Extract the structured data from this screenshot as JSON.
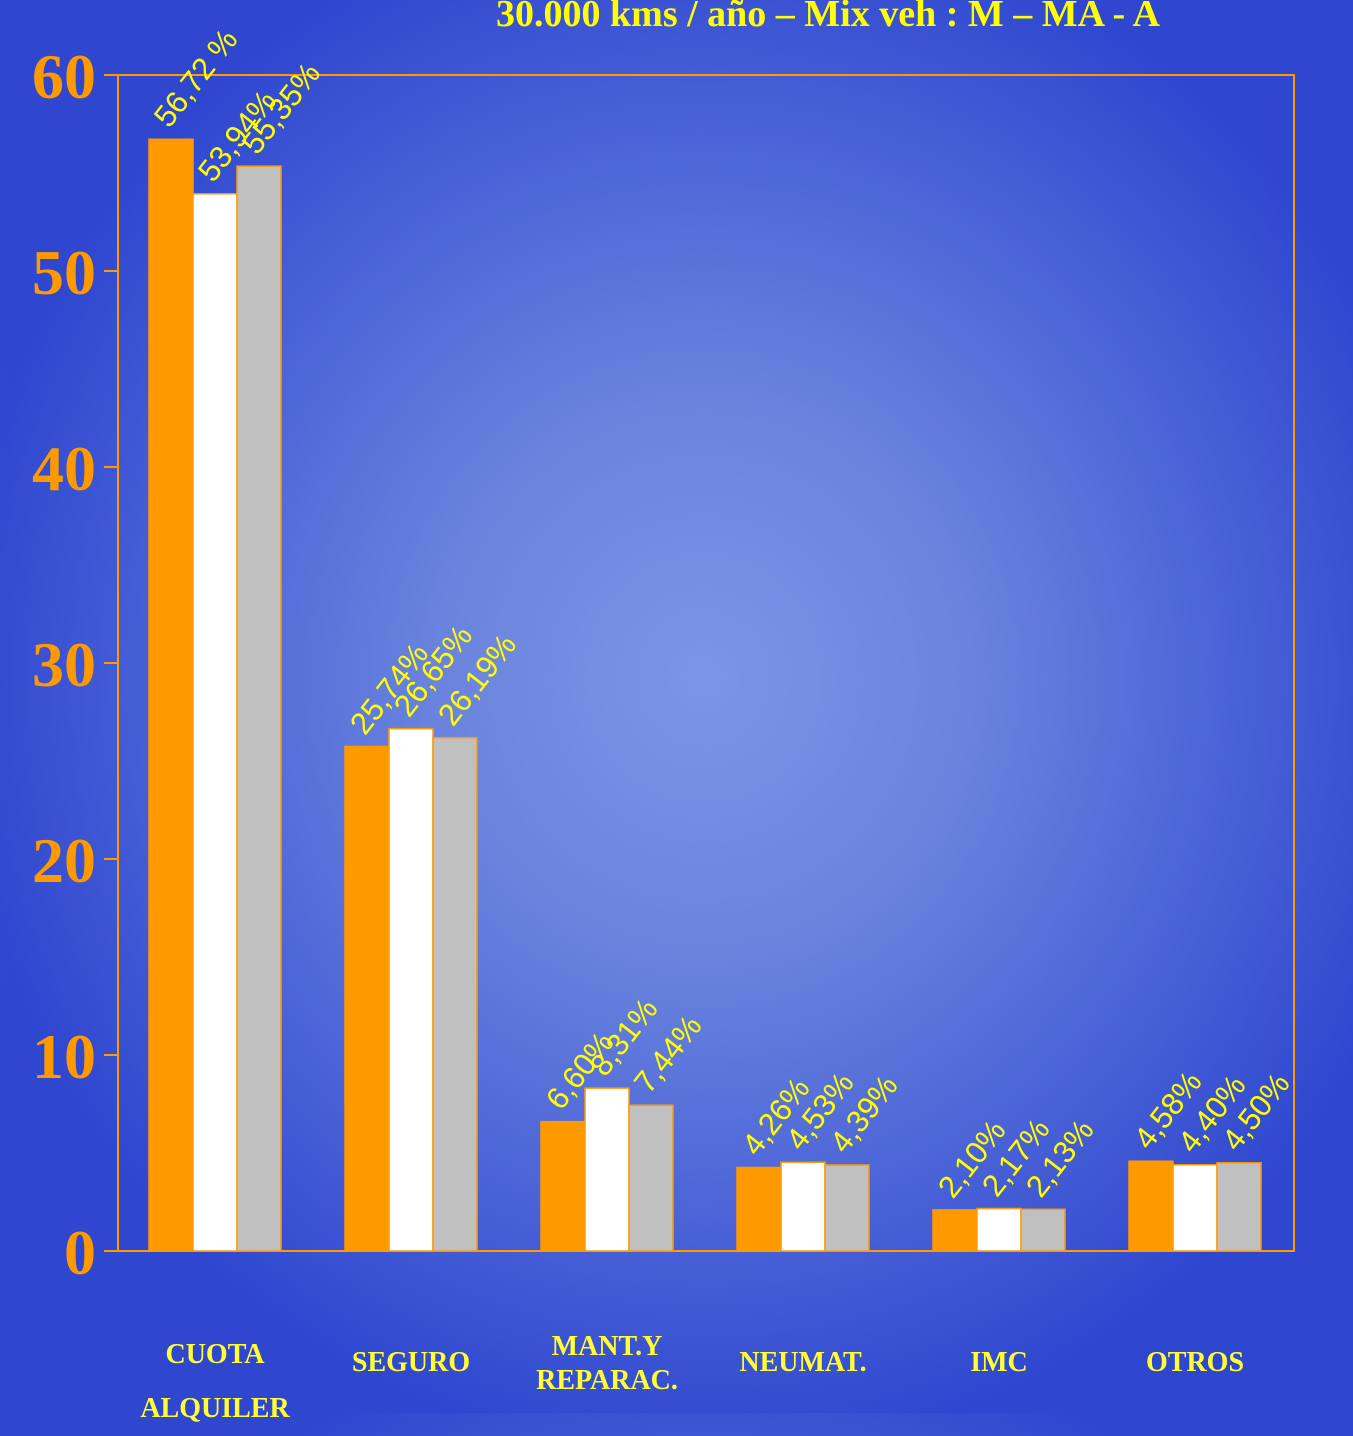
{
  "chart_data": {
    "type": "bar",
    "title": "30.000 kms / año – Mix veh : M – MA - A",
    "categories": [
      {
        "lines": [
          "CUOTA",
          "ALQUILER"
        ]
      },
      {
        "lines": [
          "SEGURO"
        ]
      },
      {
        "lines": [
          "MANT.Y",
          "REPARAC."
        ]
      },
      {
        "lines": [
          "NEUMAT."
        ]
      },
      {
        "lines": [
          "IMC"
        ]
      },
      {
        "lines": [
          "OTROS"
        ]
      }
    ],
    "series": [
      {
        "color": "#ff9900",
        "values": [
          56.72,
          25.74,
          6.6,
          4.26,
          2.1,
          4.58
        ],
        "labels": [
          "56,72 %",
          "25,74%",
          "6,60%",
          "4,26%",
          "2,10%",
          "4,58%"
        ]
      },
      {
        "color": "#ffffff",
        "values": [
          53.94,
          26.65,
          8.31,
          4.53,
          2.17,
          4.4
        ],
        "labels": [
          "53,94%",
          "26,65%",
          "8,31%",
          "4,53%",
          "2,17%",
          "4,40%"
        ]
      },
      {
        "color": "#c0c0c0",
        "values": [
          55.35,
          26.19,
          7.44,
          4.39,
          2.13,
          4.5
        ],
        "labels": [
          "55,35%",
          "26,19%",
          "7,44%",
          "4,39%",
          "2,13%",
          "4,50%"
        ]
      }
    ],
    "ylim": [
      0,
      60
    ],
    "yticks": [
      "0",
      "10",
      "20",
      "30",
      "40",
      "50",
      "60"
    ],
    "legend": "none",
    "grid": false
  }
}
